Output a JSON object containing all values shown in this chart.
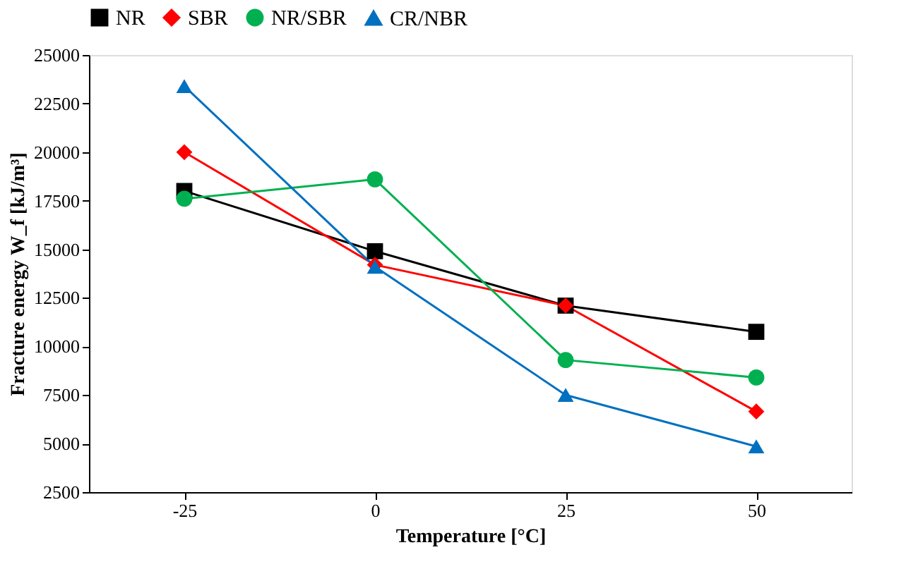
{
  "chart_data": {
    "type": "line",
    "xlabel": "Temperature [°C]",
    "ylabel": "Fracture energy W_f [kJ/m³]",
    "categories": [
      "-25",
      "0",
      "25",
      "50"
    ],
    "ylim": [
      2500,
      25000
    ],
    "yticks": [
      2500,
      5000,
      7500,
      10000,
      12500,
      15000,
      17500,
      20000,
      22500,
      25000
    ],
    "grid": false,
    "legend": "top",
    "series": [
      {
        "name": "NR",
        "color": "#000000",
        "marker": "square",
        "values": [
          18000,
          14900,
          12100,
          10750
        ]
      },
      {
        "name": "SBR",
        "color": "#ff0000",
        "marker": "diamond",
        "values": [
          20000,
          14200,
          12100,
          6650
        ]
      },
      {
        "name": "NR/SBR",
        "color": "#00b050",
        "marker": "circle",
        "values": [
          17600,
          18600,
          9300,
          8400
        ]
      },
      {
        "name": "CR/NBR",
        "color": "#0070c0",
        "marker": "triangle",
        "values": [
          23400,
          14100,
          7500,
          4850
        ]
      }
    ]
  }
}
